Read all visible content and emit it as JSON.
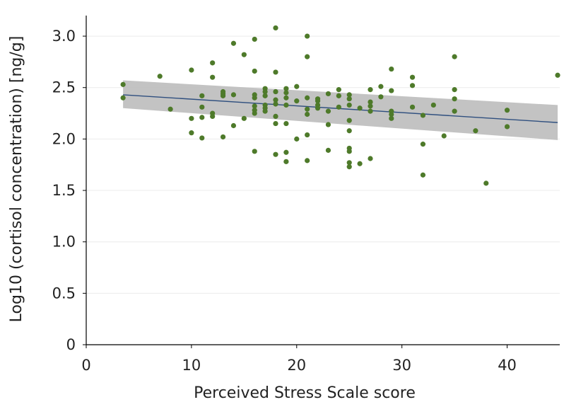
{
  "chart_data": {
    "type": "scatter",
    "title": "",
    "xlabel": "Perceived Stress Scale score",
    "ylabel": "Log10 (cortisol concentration) [ng/g]",
    "xlim": [
      0,
      45
    ],
    "ylim": [
      0,
      3.2
    ],
    "x_ticks": [
      0,
      10,
      20,
      30,
      40
    ],
    "x_tick_labels": [
      "0",
      "10",
      "20",
      "30",
      "40"
    ],
    "y_ticks": [
      0,
      0.5,
      1.0,
      1.5,
      2.0,
      2.5,
      3.0
    ],
    "y_tick_labels": [
      "0",
      "0.5",
      "1.0",
      "1.5",
      "2.0",
      "2.5",
      "3.0"
    ],
    "grid": "horizontal",
    "point_color": "#4e7a2a",
    "line_color": "#2f4f7f",
    "band_color": "#bdbdbd",
    "points": [
      [
        3.5,
        2.53
      ],
      [
        3.5,
        2.4
      ],
      [
        7,
        2.61
      ],
      [
        8,
        2.29
      ],
      [
        10,
        2.67
      ],
      [
        10,
        2.2
      ],
      [
        10,
        2.06
      ],
      [
        11,
        2.42
      ],
      [
        11,
        2.31
      ],
      [
        11,
        2.21
      ],
      [
        11,
        2.01
      ],
      [
        12,
        2.74
      ],
      [
        12,
        2.6
      ],
      [
        12,
        2.25
      ],
      [
        12,
        2.22
      ],
      [
        13,
        2.46
      ],
      [
        13,
        2.44
      ],
      [
        13,
        2.42
      ],
      [
        13,
        2.02
      ],
      [
        14,
        2.93
      ],
      [
        14,
        2.43
      ],
      [
        14,
        2.13
      ],
      [
        15,
        2.82
      ],
      [
        15,
        2.2
      ],
      [
        16,
        2.97
      ],
      [
        16,
        2.66
      ],
      [
        16,
        2.43
      ],
      [
        16,
        2.4
      ],
      [
        16,
        2.32
      ],
      [
        16,
        2.28
      ],
      [
        16,
        2.25
      ],
      [
        16,
        1.88
      ],
      [
        17,
        2.49
      ],
      [
        17,
        2.46
      ],
      [
        17,
        2.42
      ],
      [
        17,
        2.33
      ],
      [
        17,
        2.3
      ],
      [
        17,
        2.27
      ],
      [
        18,
        3.08
      ],
      [
        18,
        2.65
      ],
      [
        18,
        2.46
      ],
      [
        18,
        2.38
      ],
      [
        18,
        2.34
      ],
      [
        18,
        2.22
      ],
      [
        18,
        2.15
      ],
      [
        18,
        1.85
      ],
      [
        19,
        2.49
      ],
      [
        19,
        2.45
      ],
      [
        19,
        2.4
      ],
      [
        19,
        2.33
      ],
      [
        19,
        2.15
      ],
      [
        19,
        1.87
      ],
      [
        19,
        1.78
      ],
      [
        20,
        2.51
      ],
      [
        20,
        2.37
      ],
      [
        20,
        2.0
      ],
      [
        21,
        3.0
      ],
      [
        21,
        2.8
      ],
      [
        21,
        2.4
      ],
      [
        21,
        2.29
      ],
      [
        21,
        2.24
      ],
      [
        21,
        2.04
      ],
      [
        21,
        1.79
      ],
      [
        22,
        2.39
      ],
      [
        22,
        2.37
      ],
      [
        22,
        2.33
      ],
      [
        22,
        2.3
      ],
      [
        23,
        2.44
      ],
      [
        23,
        2.27
      ],
      [
        23,
        2.14
      ],
      [
        23,
        1.89
      ],
      [
        24,
        2.48
      ],
      [
        24,
        2.42
      ],
      [
        24,
        2.31
      ],
      [
        25,
        2.43
      ],
      [
        25,
        2.39
      ],
      [
        25,
        2.33
      ],
      [
        25,
        2.18
      ],
      [
        25,
        2.08
      ],
      [
        25,
        1.91
      ],
      [
        25,
        1.88
      ],
      [
        25,
        1.77
      ],
      [
        25,
        1.73
      ],
      [
        26,
        2.3
      ],
      [
        26,
        1.76
      ],
      [
        27,
        2.48
      ],
      [
        27,
        2.36
      ],
      [
        27,
        2.32
      ],
      [
        27,
        2.27
      ],
      [
        27,
        1.81
      ],
      [
        28,
        2.51
      ],
      [
        28,
        2.41
      ],
      [
        29,
        2.68
      ],
      [
        29,
        2.47
      ],
      [
        29,
        2.27
      ],
      [
        29,
        2.24
      ],
      [
        29,
        2.2
      ],
      [
        31,
        2.6
      ],
      [
        31,
        2.52
      ],
      [
        31,
        2.31
      ],
      [
        32,
        2.23
      ],
      [
        32,
        1.95
      ],
      [
        32,
        1.65
      ],
      [
        33,
        2.33
      ],
      [
        34,
        2.03
      ],
      [
        35,
        2.8
      ],
      [
        35,
        2.48
      ],
      [
        35,
        2.39
      ],
      [
        35,
        2.27
      ],
      [
        37,
        2.08
      ],
      [
        38,
        1.57
      ],
      [
        40,
        2.28
      ],
      [
        40,
        2.12
      ],
      [
        44.8,
        2.62
      ]
    ],
    "regression": {
      "x": [
        3.5,
        44.8
      ],
      "y": [
        2.43,
        2.16
      ],
      "ci_lower": [
        2.3,
        1.99
      ],
      "ci_upper": [
        2.57,
        2.33
      ]
    }
  }
}
